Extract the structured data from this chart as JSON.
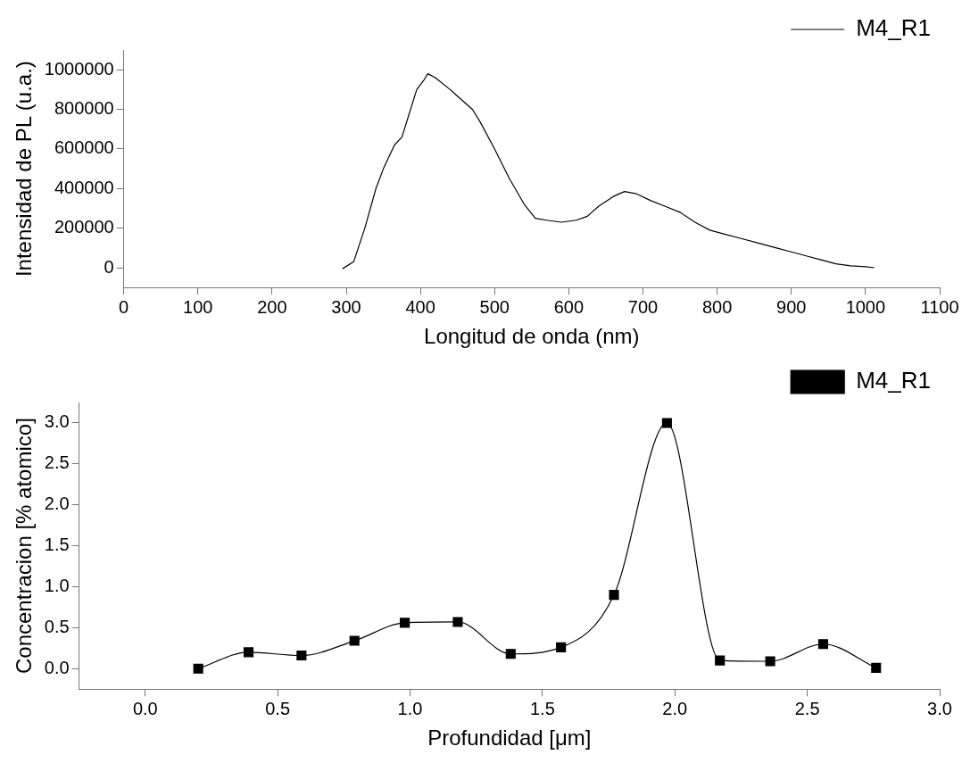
{
  "chart_data": [
    {
      "type": "line",
      "xlabel": "Longitud de onda (nm)",
      "ylabel": "Intensidad de PL (u.a.)",
      "legend": "top right",
      "marker": "none",
      "line_style": "solid",
      "grid": false,
      "xlim": [
        0,
        1100
      ],
      "xticks": [
        0,
        100,
        200,
        300,
        400,
        500,
        600,
        700,
        800,
        900,
        1000,
        1100
      ],
      "ylim": [
        -100000,
        1100000
      ],
      "yticks": [
        0,
        200000,
        400000,
        600000,
        800000,
        1000000
      ],
      "series": [
        {
          "name": "M4_R1",
          "color": "#000000",
          "x": [
            295,
            310,
            325,
            340,
            350,
            365,
            375,
            385,
            395,
            405,
            410,
            420,
            440,
            455,
            470,
            480,
            500,
            520,
            540,
            555,
            570,
            590,
            610,
            625,
            640,
            660,
            675,
            690,
            710,
            730,
            750,
            770,
            790,
            810,
            830,
            860,
            880,
            900,
            920,
            940,
            960,
            980,
            1000,
            1012
          ],
          "values": [
            -5000,
            30000,
            200000,
            400000,
            500000,
            620000,
            660000,
            780000,
            900000,
            950000,
            980000,
            960000,
            900000,
            850000,
            800000,
            740000,
            600000,
            450000,
            320000,
            250000,
            240000,
            230000,
            240000,
            260000,
            310000,
            360000,
            385000,
            375000,
            340000,
            310000,
            280000,
            230000,
            190000,
            170000,
            150000,
            120000,
            100000,
            80000,
            60000,
            40000,
            20000,
            10000,
            5000,
            0
          ]
        }
      ]
    },
    {
      "type": "line",
      "xlabel": "Profundidad [μm]",
      "ylabel": "Concentracion [% atomico]",
      "legend": "top right",
      "marker": "square",
      "line_style": "solid",
      "grid": false,
      "xlim": [
        -0.25,
        3.0
      ],
      "xticks": [
        {
          "value": 0,
          "label": "0.0"
        },
        0.5,
        {
          "value": 1,
          "label": "1.0"
        },
        1.5,
        {
          "value": 2,
          "label": "2.0"
        },
        2.5,
        {
          "value": 3,
          "label": "3.0"
        }
      ],
      "ylim": [
        -0.25,
        3.25
      ],
      "yticks": [
        {
          "value": 0,
          "label": "0.0"
        },
        0.5,
        {
          "value": 1,
          "label": "1.0"
        },
        1.5,
        {
          "value": 2,
          "label": "2.0"
        },
        2.5,
        {
          "value": 3,
          "label": "3.0"
        }
      ],
      "series": [
        {
          "name": "M4_R1",
          "color": "#000000",
          "x": [
            0.2,
            0.39,
            0.59,
            0.79,
            0.98,
            1.18,
            1.38,
            1.57,
            1.77,
            1.97,
            2.17,
            2.36,
            2.56,
            2.76
          ],
          "values": [
            0,
            0.2,
            0.16,
            0.34,
            0.56,
            0.57,
            0.18,
            0.26,
            0.9,
            3.0,
            0.1,
            0.09,
            0.3,
            0.01
          ]
        }
      ]
    }
  ]
}
